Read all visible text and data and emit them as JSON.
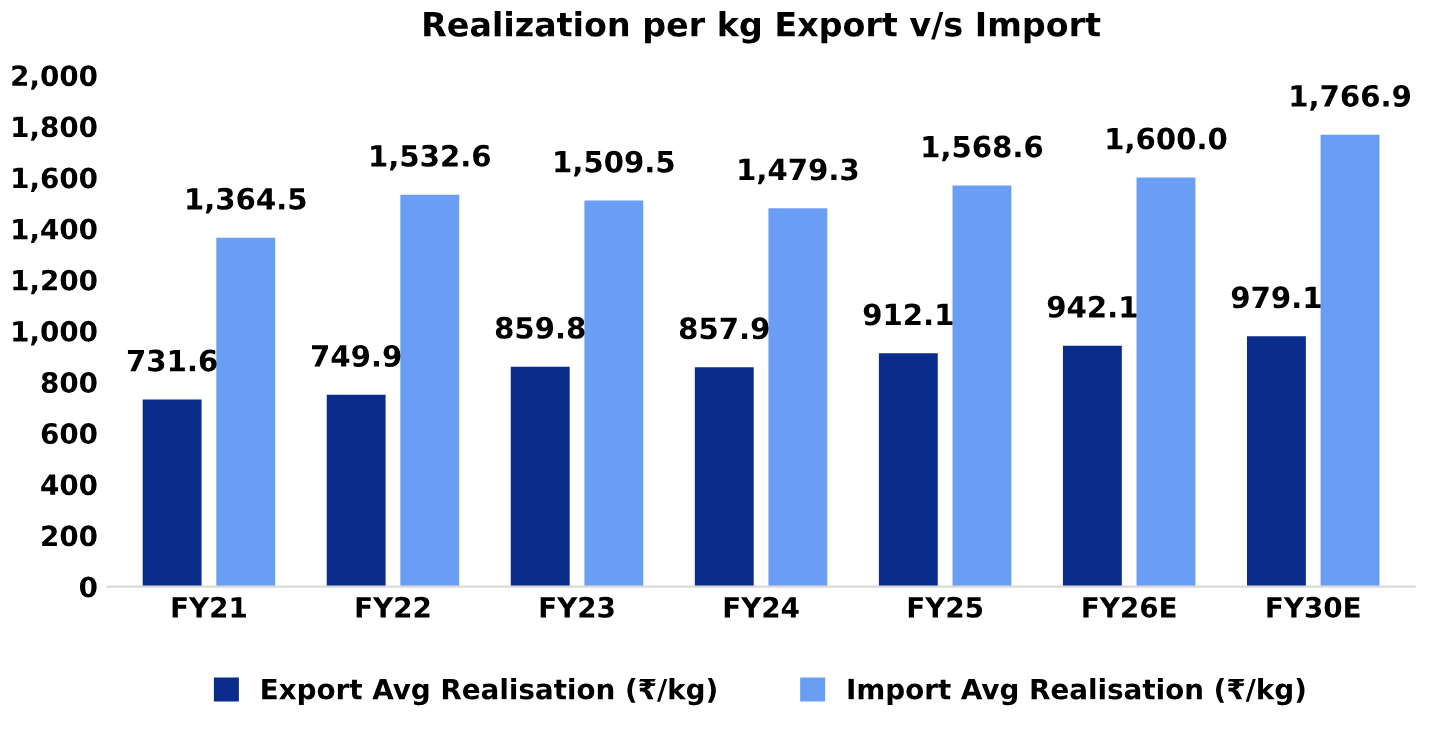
{
  "chart_data": {
    "type": "bar",
    "title": "Realization per kg Export v/s Import",
    "categories": [
      "FY21",
      "FY22",
      "FY23",
      "FY24",
      "FY25",
      "FY26E",
      "FY30E"
    ],
    "series": [
      {
        "name": "Export Avg Realisation (₹/kg)",
        "color": "#0a2d8c",
        "values": [
          731.6,
          749.9,
          859.8,
          857.9,
          912.1,
          942.1,
          979.1
        ],
        "value_labels": [
          "731.6",
          "749.9",
          "859.8",
          "857.9",
          "912.1",
          "942.1",
          "979.1"
        ]
      },
      {
        "name": "Import Avg Realisation (₹/kg)",
        "color": "#6a9ef5",
        "values": [
          1364.5,
          1532.6,
          1509.5,
          1479.3,
          1568.6,
          1600.0,
          1766.9
        ],
        "value_labels": [
          "1,364.5",
          "1,532.6",
          "1,509.5",
          "1,479.3",
          "1,568.6",
          "1,600.0",
          "1,766.9"
        ]
      }
    ],
    "ylim": [
      0,
      2000
    ],
    "yticks": [
      0,
      200,
      400,
      600,
      800,
      {
        "value": 1000,
        "label": "1,000"
      },
      {
        "value": 1200,
        "label": "1,200"
      },
      {
        "value": 1400,
        "label": "1,400"
      },
      {
        "value": 1600,
        "label": "1,600"
      },
      {
        "value": 1800,
        "label": "1,800"
      },
      {
        "value": 2000,
        "label": "2,000"
      }
    ],
    "grid": false,
    "legend": "bottom"
  }
}
